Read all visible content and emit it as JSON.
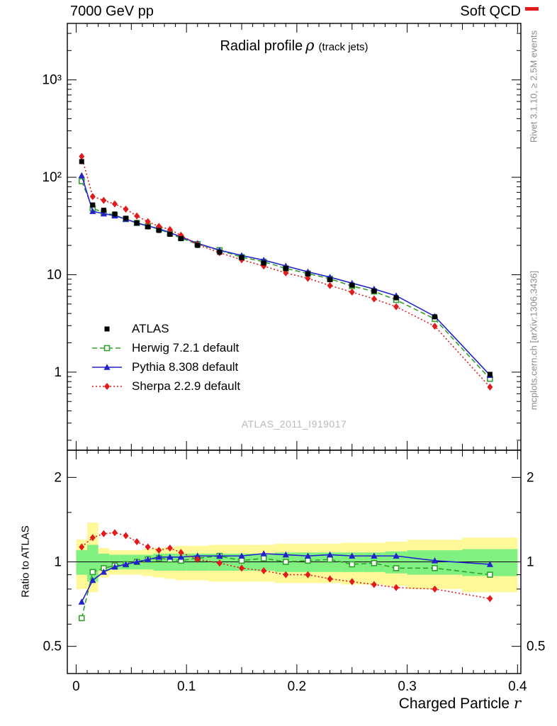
{
  "header": {
    "left": "7000 GeV pp",
    "right": "Soft QCD"
  },
  "side_notes": {
    "top": "Rivet 3.1.10, ≥ 2.5M events",
    "bottom": "mcplots.cern.ch [arXiv:1306.3436]"
  },
  "watermark": "ATLAS_2011_I919017",
  "chart_data": {
    "type": "line",
    "title": {
      "main": "Radial profile",
      "symbol": "ρ",
      "suffix": "(track jets)"
    },
    "xlabel": {
      "main": "Charged Particle",
      "symbol": "r"
    },
    "ratio_ylabel": "Ratio to ATLAS",
    "legend_position": "lower-left",
    "grid": false,
    "xlim": [
      -0.008,
      0.403
    ],
    "ylim_top": [
      0.158,
      3800
    ],
    "ylim_ratio": [
      0.4,
      2.5
    ],
    "x_ticks": [
      0,
      0.1,
      0.2,
      0.3,
      0.4
    ],
    "x_tick_labels": [
      "0",
      "0.1",
      "0.2",
      "0.3",
      "0.4"
    ],
    "y_ticks_top": [
      1,
      10,
      100,
      1000
    ],
    "y_tick_labels_top": [
      "1",
      "10",
      "10²",
      "10³"
    ],
    "y_ticks_ratio": [
      0.5,
      1,
      2
    ],
    "y_tick_labels_ratio": [
      "0.5",
      "1",
      "2"
    ],
    "x": [
      0.005,
      0.015,
      0.025,
      0.035,
      0.045,
      0.055,
      0.065,
      0.075,
      0.085,
      0.095,
      0.11,
      0.13,
      0.15,
      0.17,
      0.19,
      0.21,
      0.23,
      0.25,
      0.27,
      0.29,
      0.325,
      0.375
    ],
    "bin_edges": [
      0,
      0.01,
      0.02,
      0.03,
      0.04,
      0.05,
      0.06,
      0.07,
      0.08,
      0.09,
      0.1,
      0.12,
      0.14,
      0.16,
      0.18,
      0.2,
      0.22,
      0.24,
      0.26,
      0.28,
      0.3,
      0.35,
      0.4
    ],
    "series": [
      {
        "id": "atlas",
        "name": "ATLAS",
        "color": "#000000",
        "marker": "square-filled",
        "line": "none",
        "values": [
          145,
          52,
          46,
          42,
          38,
          34,
          31,
          28.5,
          26,
          23.5,
          20,
          17,
          15,
          13.2,
          11.6,
          10.2,
          8.9,
          7.8,
          6.8,
          5.8,
          3.7,
          0.95
        ]
      },
      {
        "id": "herwig",
        "name": "Herwig 7.2.1 default",
        "color": "#33a02c",
        "marker": "square-open",
        "line": "dashed",
        "ratio": [
          0.63,
          0.92,
          0.95,
          0.97,
          0.98,
          1.0,
          1.02,
          1.03,
          1.02,
          1.01,
          1.03,
          1.05,
          1.01,
          1.03,
          1.0,
          1.01,
          1.02,
          0.98,
          0.99,
          0.95,
          0.95,
          0.9
        ]
      },
      {
        "id": "pythia",
        "name": "Pythia 8.308 default",
        "color": "#2222cc",
        "marker": "triangle-filled",
        "line": "solid",
        "ratio": [
          0.72,
          0.86,
          0.92,
          0.96,
          0.98,
          1.0,
          1.02,
          1.04,
          1.04,
          1.04,
          1.05,
          1.05,
          1.05,
          1.07,
          1.06,
          1.05,
          1.06,
          1.05,
          1.05,
          1.05,
          1.01,
          0.98
        ]
      },
      {
        "id": "sherpa",
        "name": "Sherpa 2.2.9 default",
        "color": "#e31a1c",
        "marker": "diamond-filled",
        "line": "dotted",
        "ratio": [
          1.13,
          1.22,
          1.26,
          1.27,
          1.24,
          1.18,
          1.13,
          1.1,
          1.12,
          1.08,
          1.02,
          0.99,
          0.95,
          0.93,
          0.9,
          0.9,
          0.87,
          0.85,
          0.83,
          0.81,
          0.8,
          0.74
        ]
      }
    ],
    "bands": {
      "yellow": {
        "color": "#fff899",
        "lo": [
          0.8,
          0.78,
          0.88,
          0.9,
          0.9,
          0.9,
          0.89,
          0.88,
          0.87,
          0.86,
          0.86,
          0.85,
          0.85,
          0.85,
          0.84,
          0.84,
          0.84,
          0.83,
          0.83,
          0.82,
          0.8,
          0.78
        ],
        "hi": [
          1.2,
          1.38,
          1.12,
          1.1,
          1.1,
          1.1,
          1.11,
          1.12,
          1.13,
          1.14,
          1.14,
          1.15,
          1.15,
          1.15,
          1.16,
          1.16,
          1.16,
          1.17,
          1.17,
          1.18,
          1.2,
          1.22
        ]
      },
      "green": {
        "color": "#80f080",
        "lo": [
          0.9,
          0.85,
          0.93,
          0.94,
          0.94,
          0.94,
          0.94,
          0.93,
          0.93,
          0.93,
          0.93,
          0.93,
          0.93,
          0.93,
          0.92,
          0.92,
          0.92,
          0.92,
          0.92,
          0.91,
          0.9,
          0.89
        ],
        "hi": [
          1.1,
          1.15,
          1.07,
          1.06,
          1.06,
          1.06,
          1.06,
          1.07,
          1.07,
          1.07,
          1.07,
          1.07,
          1.07,
          1.07,
          1.08,
          1.08,
          1.08,
          1.08,
          1.08,
          1.09,
          1.1,
          1.11
        ]
      }
    }
  }
}
